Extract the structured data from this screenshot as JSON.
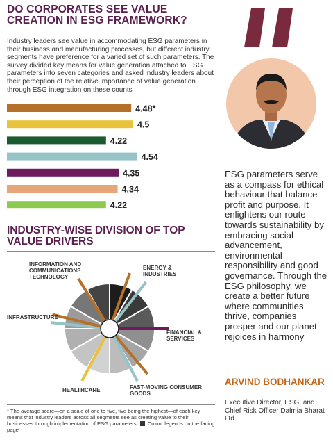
{
  "left": {
    "title": "DO CORPORATES SEE VALUE CREATION IN ESG FRAMEWORK?",
    "intro": "Industry leaders see value in accommodating ESG parameters in their business and manufacturing processes, but different industry segments have preference for a varied set of such parameters. The survey divided key means for value generation attached to ESG parameters into seven categories and asked industry leaders about their perception of the relative importance of value generation through ESG integration on these counts",
    "section2_title": "INDUSTRY-WISE DIVISION OF TOP VALUE DRIVERS",
    "footnote": "* The average score—on a scale of one to five, five being the highest—of each key means that industry leaders across all segments see as creating value to their businesses through implementation of ESG parameters",
    "legend_note": "Colour legends on the facing page"
  },
  "chart_data": [
    {
      "type": "bar",
      "orientation": "horizontal",
      "values": [
        4.48,
        4.5,
        4.22,
        4.54,
        4.35,
        4.34,
        4.22
      ],
      "value_labels": [
        "4.48*",
        "4.5",
        "4.22",
        "4.54",
        "4.35",
        "4.34",
        "4.22"
      ],
      "colors": [
        "#b5702a",
        "#e8c23a",
        "#1c5a32",
        "#95c3c6",
        "#6e1a5c",
        "#e6a67a",
        "#8dc94f"
      ],
      "xlim": [
        3.2,
        4.6
      ]
    },
    {
      "type": "pie",
      "style": "radial-wheel",
      "categories": [
        "ENERGY & INDUSTRIES",
        "FINANCIAL & SERVICES",
        "FAST-MOVING CONSUMER GOODS",
        "HEALTHCARE",
        "INFRASTRUCTURE",
        "INFORMATION AND COMMUNICATIONS TECHNOLOGY"
      ],
      "segment_colors": [
        "#1c1c1c",
        "#3a3a3a",
        "#5a5a5a",
        "#8f8f8f",
        "#a6a6a6",
        "#bcbcbc",
        "#d2d2d2",
        "#c4c4c4",
        "#b0b0b0",
        "#9b9b9b",
        "#777777",
        "#444444"
      ],
      "spokes": [
        {
          "color": "#b5702a",
          "angle": -70
        },
        {
          "color": "#95c3c6",
          "angle": -52
        },
        {
          "color": "#6e1a5c",
          "angle": 0
        },
        {
          "color": "#b5702a",
          "angle": 50
        },
        {
          "color": "#95c3c6",
          "angle": 62
        },
        {
          "color": "#e8c23a",
          "angle": 118
        },
        {
          "color": "#95c3c6",
          "angle": 186
        },
        {
          "color": "#b5702a",
          "angle": 194
        },
        {
          "color": "#b5702a",
          "angle": 238
        }
      ]
    }
  ],
  "quote": {
    "text": "ESG parameters serve as a compass for ethical behaviour that balance profit and purpose. It enlightens our route towards sustainability by embracing social advancement, environmental responsibility and good governance. Through the ESG philosophy, we create a better future where communities thrive, companies prosper and our planet rejoices in harmony",
    "name": "ARVIND BODHANKAR",
    "role": "Executive Director, ESG, and Chief Risk Officer Dalmia Bharat Ltd",
    "accent_color": "#c2641a"
  }
}
